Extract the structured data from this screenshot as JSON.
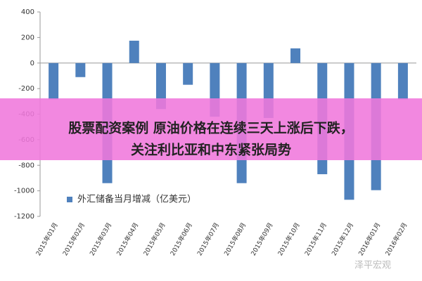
{
  "chart_data": {
    "type": "bar",
    "categories": [
      "2015年01月",
      "2015年02月",
      "2015年03月",
      "2015年04月",
      "2015年05月",
      "2015年06月",
      "2015年07月",
      "2015年08月",
      "2015年09月",
      "2015年10月",
      "2015年11月",
      "2015年12月",
      "2016年01月",
      "2016年02月"
    ],
    "series": [
      {
        "name": "外汇储备当月增减（亿美元）",
        "color": "#4f81bd",
        "values": [
          -285,
          -110,
          -940,
          175,
          -360,
          -170,
          -420,
          -940,
          -430,
          115,
          -870,
          -1070,
          -995,
          -285
        ]
      }
    ],
    "ylim": [
      -1200,
      400
    ],
    "yticks": [
      -1200,
      -1000,
      -800,
      -600,
      -400,
      -200,
      0,
      200,
      400
    ],
    "legend": "bottom-left"
  },
  "banner": {
    "lines": [
      "股票配资案例 原油价格在连续三天上涨后下跌，",
      "关注利比亚和中东紧张局势"
    ]
  },
  "watermark": "泽平宏观"
}
